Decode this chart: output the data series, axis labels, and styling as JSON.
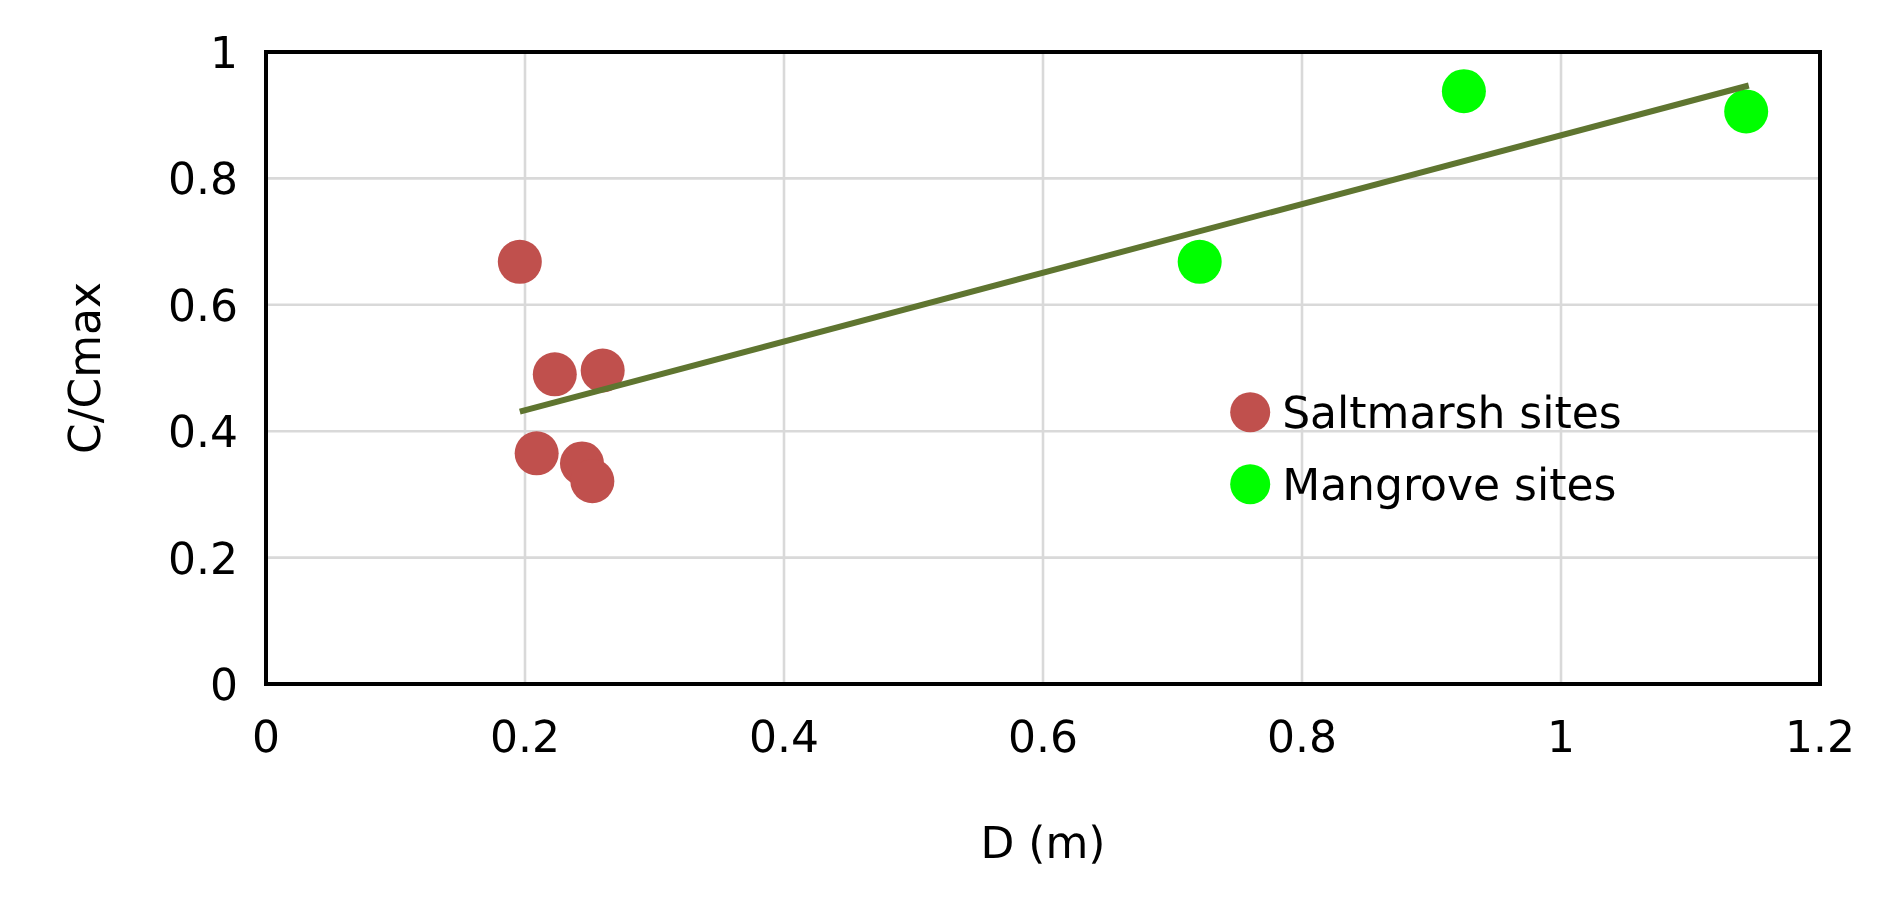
{
  "chart_data": {
    "type": "scatter",
    "xlabel": "D (m)",
    "ylabel": "C/Cmax",
    "xlim": [
      0,
      1.2
    ],
    "xticks": [
      0,
      0.2,
      0.4,
      0.6,
      0.8,
      1,
      1.2
    ],
    "ylim": [
      0,
      1
    ],
    "yticks": [
      0,
      0.2,
      0.4,
      0.6,
      0.8,
      1
    ],
    "grid": true,
    "legend": "right",
    "marker": "circle",
    "series": [
      {
        "name": "Saltmarsh sites",
        "color": "#c0504d",
        "x": [
          0.196,
          0.223,
          0.26,
          0.209,
          0.244,
          0.252
        ],
        "values": [
          0.668,
          0.49,
          0.496,
          0.365,
          0.349,
          0.321
        ]
      },
      {
        "name": "Mangrove sites",
        "color": "#00ff00",
        "x": [
          0.721,
          0.925,
          1.143
        ],
        "values": [
          0.668,
          0.938,
          0.906
        ]
      },
      {
        "type": "line",
        "color": "#5f7530",
        "x": [
          0.196,
          1.145
        ],
        "values": [
          0.431,
          0.947
        ],
        "line_style": "solid",
        "marker": "none"
      }
    ]
  }
}
